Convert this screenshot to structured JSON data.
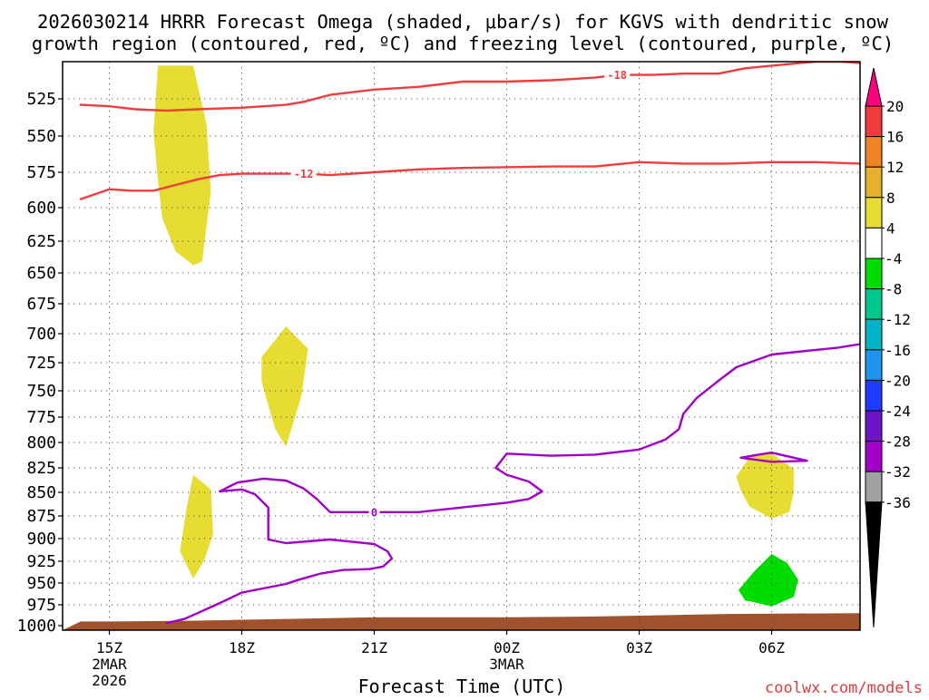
{
  "title": {
    "line1": "2026030214 HRRR Forecast Omega (shaded, μbar/s) for KGVS with dendritic snow",
    "line2": "growth region (contoured, red, ºC) and freezing level (contoured, purple, ºC)"
  },
  "credit": "coolwx.com/models",
  "chart_data": {
    "type": "time-height cross section",
    "xlabel": "Forecast Time (UTC)",
    "ylabel": "",
    "x_hours_range": [
      14.35,
      32.0
    ],
    "y_range_mb": [
      1000,
      497
    ],
    "y_scale": "pressure (reversed, log-like)",
    "grid": "dotted",
    "y_ticks": [
      525,
      550,
      575,
      600,
      625,
      650,
      675,
      700,
      725,
      750,
      775,
      800,
      825,
      850,
      875,
      900,
      925,
      950,
      975,
      1000
    ],
    "x_ticks": [
      {
        "hour": 15,
        "lines": [
          "15Z",
          "2MAR",
          "2026"
        ]
      },
      {
        "hour": 18,
        "lines": [
          "18Z"
        ]
      },
      {
        "hour": 21,
        "lines": [
          "21Z"
        ]
      },
      {
        "hour": 24,
        "lines": [
          "00Z",
          "3MAR"
        ]
      },
      {
        "hour": 27,
        "lines": [
          "03Z"
        ]
      },
      {
        "hour": 30,
        "lines": [
          "06Z"
        ]
      }
    ],
    "omega_regions": [
      {
        "color": "#e6dc32",
        "points": [
          [
            16.1,
            500
          ],
          [
            16.9,
            500
          ],
          [
            17.2,
            542
          ],
          [
            17.3,
            589
          ],
          [
            17.1,
            641
          ],
          [
            16.9,
            644
          ],
          [
            16.5,
            633
          ],
          [
            16.2,
            608
          ],
          [
            16.1,
            580
          ],
          [
            16.0,
            548
          ]
        ]
      },
      {
        "color": "#e6dc32",
        "points": [
          [
            18.45,
            720
          ],
          [
            19.0,
            694
          ],
          [
            19.5,
            713
          ],
          [
            19.35,
            755
          ],
          [
            19.0,
            804
          ],
          [
            18.75,
            786
          ],
          [
            18.45,
            742
          ]
        ]
      },
      {
        "color": "#e6dc32",
        "points": [
          [
            16.9,
            832
          ],
          [
            17.3,
            847
          ],
          [
            17.35,
            895
          ],
          [
            17.15,
            924
          ],
          [
            16.9,
            945
          ],
          [
            16.6,
            914
          ],
          [
            16.75,
            866
          ]
        ]
      },
      {
        "color": "#e6dc32",
        "points": [
          [
            29.2,
            834
          ],
          [
            29.5,
            814
          ],
          [
            29.95,
            809
          ],
          [
            30.5,
            826
          ],
          [
            30.5,
            850
          ],
          [
            30.4,
            871
          ],
          [
            30.0,
            878
          ],
          [
            29.5,
            865
          ],
          [
            29.3,
            848
          ]
        ]
      },
      {
        "color": "#00dc00",
        "points": [
          [
            29.25,
            958
          ],
          [
            29.6,
            937
          ],
          [
            30.0,
            917
          ],
          [
            30.35,
            927
          ],
          [
            30.6,
            946
          ],
          [
            30.5,
            966
          ],
          [
            30.0,
            977
          ],
          [
            29.6,
            972
          ],
          [
            29.4,
            970
          ]
        ]
      }
    ],
    "contours": [
      {
        "label": "-18",
        "color": "#f03c3c",
        "label_at": [
          26.5,
          507
        ],
        "points": [
          [
            14.35,
            529
          ],
          [
            15.0,
            530
          ],
          [
            15.6,
            532
          ],
          [
            16.3,
            533
          ],
          [
            17.0,
            532
          ],
          [
            18.0,
            531
          ],
          [
            19.0,
            529
          ],
          [
            19.4,
            527
          ],
          [
            20.0,
            522
          ],
          [
            21.0,
            518
          ],
          [
            22.0,
            516
          ],
          [
            23.0,
            512
          ],
          [
            24.0,
            512
          ],
          [
            25.0,
            511
          ],
          [
            26.0,
            509
          ],
          [
            26.5,
            507
          ],
          [
            27.3,
            507
          ],
          [
            28.0,
            506
          ],
          [
            28.8,
            506
          ],
          [
            29.4,
            502
          ],
          [
            30.0,
            500
          ],
          [
            31.0,
            497
          ],
          [
            31.6,
            497
          ],
          [
            32.0,
            498
          ]
        ]
      },
      {
        "label": "-12",
        "color": "#f03c3c",
        "label_at": [
          19.4,
          576
        ],
        "points": [
          [
            14.35,
            594
          ],
          [
            15.0,
            587
          ],
          [
            15.5,
            588
          ],
          [
            16.0,
            588
          ],
          [
            16.5,
            584
          ],
          [
            17.0,
            580
          ],
          [
            17.5,
            577
          ],
          [
            18.0,
            576
          ],
          [
            19.0,
            576
          ],
          [
            19.4,
            576
          ],
          [
            20.0,
            577
          ],
          [
            21.0,
            575
          ],
          [
            22.0,
            573
          ],
          [
            23.0,
            572
          ],
          [
            25.0,
            571
          ],
          [
            26.0,
            571
          ],
          [
            27.0,
            568
          ],
          [
            28.0,
            569
          ],
          [
            29.0,
            569
          ],
          [
            30.0,
            568
          ],
          [
            31.0,
            568
          ],
          [
            32.0,
            569
          ]
        ]
      },
      {
        "label": "0",
        "color": "#a000c8",
        "label_at": [
          21.0,
          871
        ],
        "points": [
          [
            16.3,
            997
          ],
          [
            16.7,
            992
          ],
          [
            17.0,
            985
          ],
          [
            17.5,
            973
          ],
          [
            18.0,
            961
          ],
          [
            19.0,
            951
          ],
          [
            19.3,
            946
          ],
          [
            19.8,
            939
          ],
          [
            20.3,
            935
          ],
          [
            20.9,
            934
          ],
          [
            21.2,
            931
          ],
          [
            21.4,
            922
          ],
          [
            21.3,
            914
          ],
          [
            21.0,
            906
          ],
          [
            20.0,
            901
          ],
          [
            19.5,
            903
          ],
          [
            19.0,
            905
          ],
          [
            18.6,
            901
          ],
          [
            18.6,
            866
          ],
          [
            18.3,
            852
          ],
          [
            18.0,
            847
          ],
          [
            17.5,
            849
          ],
          [
            17.9,
            840
          ],
          [
            18.5,
            836
          ],
          [
            19.0,
            838
          ],
          [
            19.4,
            846
          ],
          [
            19.7,
            857
          ],
          [
            20.0,
            871
          ],
          [
            21.0,
            871
          ],
          [
            22.0,
            871
          ],
          [
            23.0,
            866
          ],
          [
            24.0,
            861
          ],
          [
            24.5,
            857
          ],
          [
            24.8,
            849
          ],
          [
            24.5,
            839
          ],
          [
            24.0,
            832
          ],
          [
            23.75,
            825
          ],
          [
            24.0,
            811
          ],
          [
            25.0,
            813
          ],
          [
            26.0,
            812
          ],
          [
            27.0,
            807
          ],
          [
            27.6,
            797
          ],
          [
            27.9,
            787
          ],
          [
            28.0,
            772
          ],
          [
            28.3,
            757
          ],
          [
            28.8,
            741
          ],
          [
            29.2,
            729
          ],
          [
            30.0,
            718
          ],
          [
            31.0,
            714
          ],
          [
            31.5,
            712
          ],
          [
            32.0,
            709
          ]
        ]
      },
      {
        "label": "",
        "color": "#a000c8",
        "points": [
          [
            29.3,
            815
          ],
          [
            29.7,
            812
          ],
          [
            30.0,
            810
          ],
          [
            30.5,
            815
          ],
          [
            30.8,
            818
          ],
          [
            30.0,
            819
          ],
          [
            29.3,
            815
          ]
        ]
      }
    ],
    "ground": {
      "color": "#a0522d",
      "top_mb": [
        [
          14.35,
          995
        ],
        [
          15.0,
          995
        ],
        [
          17.0,
          994
        ],
        [
          20.0,
          991
        ],
        [
          21.0,
          990
        ],
        [
          24.0,
          990
        ],
        [
          26.0,
          989
        ],
        [
          27.0,
          988
        ],
        [
          29.0,
          986
        ],
        [
          32.0,
          985
        ]
      ]
    },
    "colorbar": {
      "labels": [
        "20",
        "16",
        "12",
        "8",
        "4",
        "-4",
        "-8",
        "-12",
        "-16",
        "-20",
        "-24",
        "-28",
        "-32",
        "-36"
      ],
      "colors": [
        "#ff0080",
        "#f03c3c",
        "#f08228",
        "#e6af2d",
        "#e6dc32",
        "#ffffff",
        "#00dc00",
        "#00c88c",
        "#00b4c8",
        "#1e96f0",
        "#1e3cff",
        "#6e14c8",
        "#a000c8",
        "#a0a0a0",
        "#000000"
      ]
    }
  }
}
